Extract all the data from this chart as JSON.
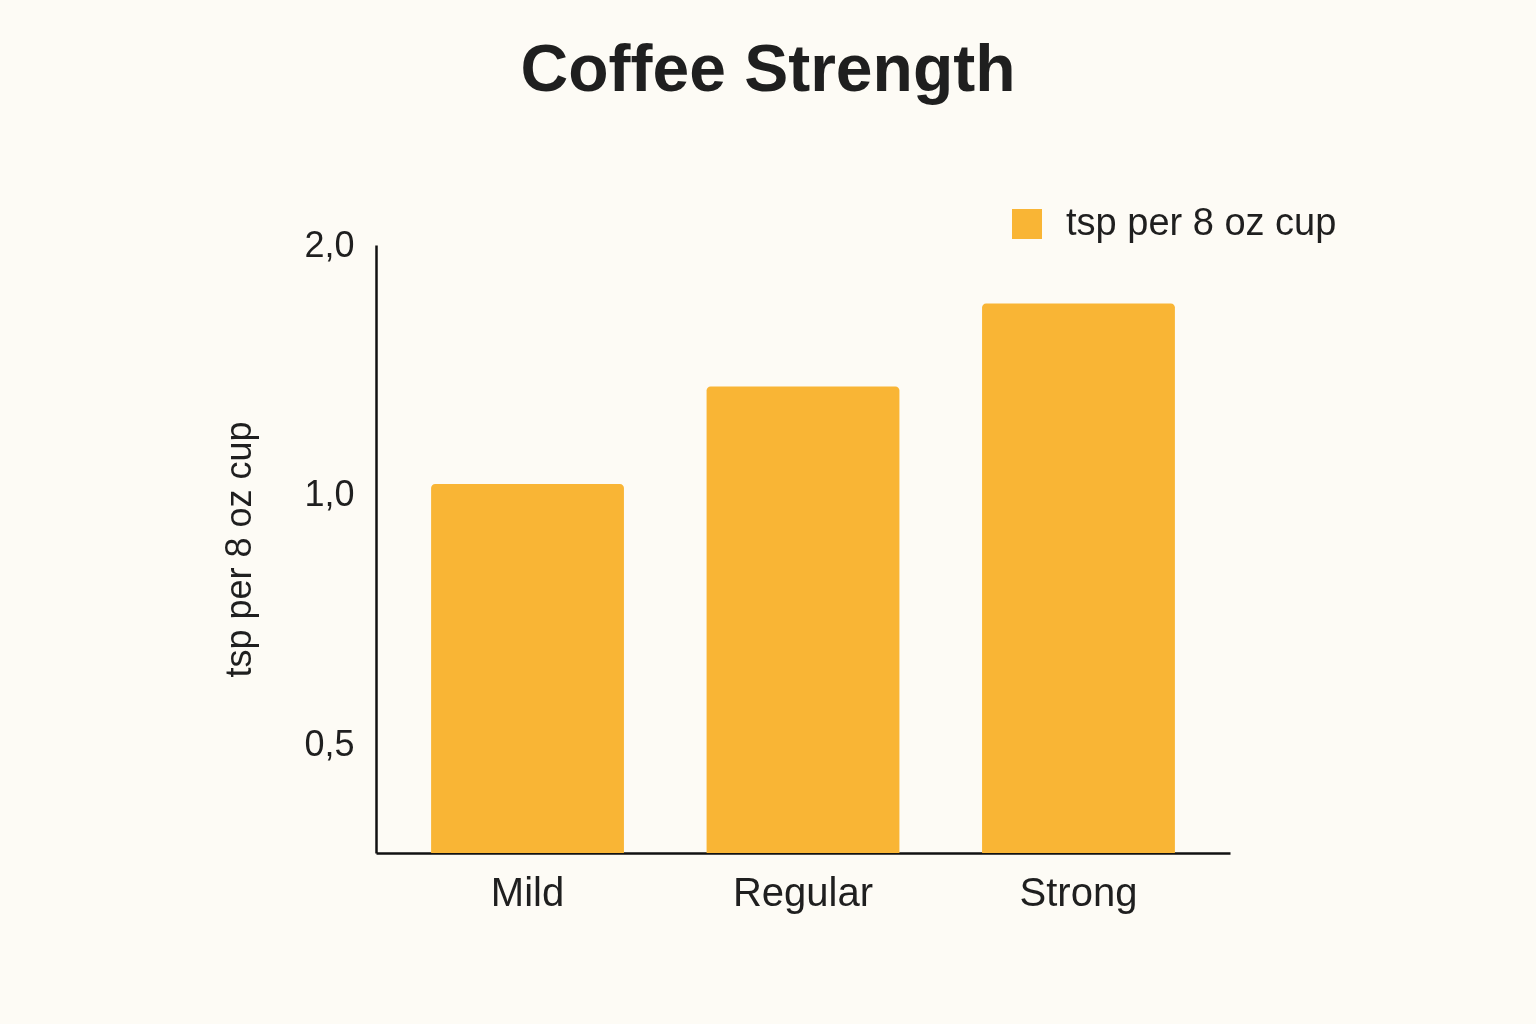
{
  "chart_data": {
    "type": "bar",
    "title": "Coffee Strength",
    "ylabel": "tsp per 8 oz cup",
    "categories": [
      "Mild",
      "Regular",
      "Strong"
    ],
    "series": [
      {
        "name": "tsp per 8 oz cup",
        "color": "#f9b535",
        "values": [
          1.03,
          1.35,
          1.7
        ]
      }
    ],
    "log": true,
    "ylim": [
      0.37,
      2
    ],
    "yticks": [
      {
        "value": 0.5,
        "label": "0,5"
      },
      {
        "value": 1,
        "label": "1,0"
      },
      {
        "value": 2,
        "label": "2,0"
      }
    ],
    "legend": "top right",
    "grid": false
  }
}
